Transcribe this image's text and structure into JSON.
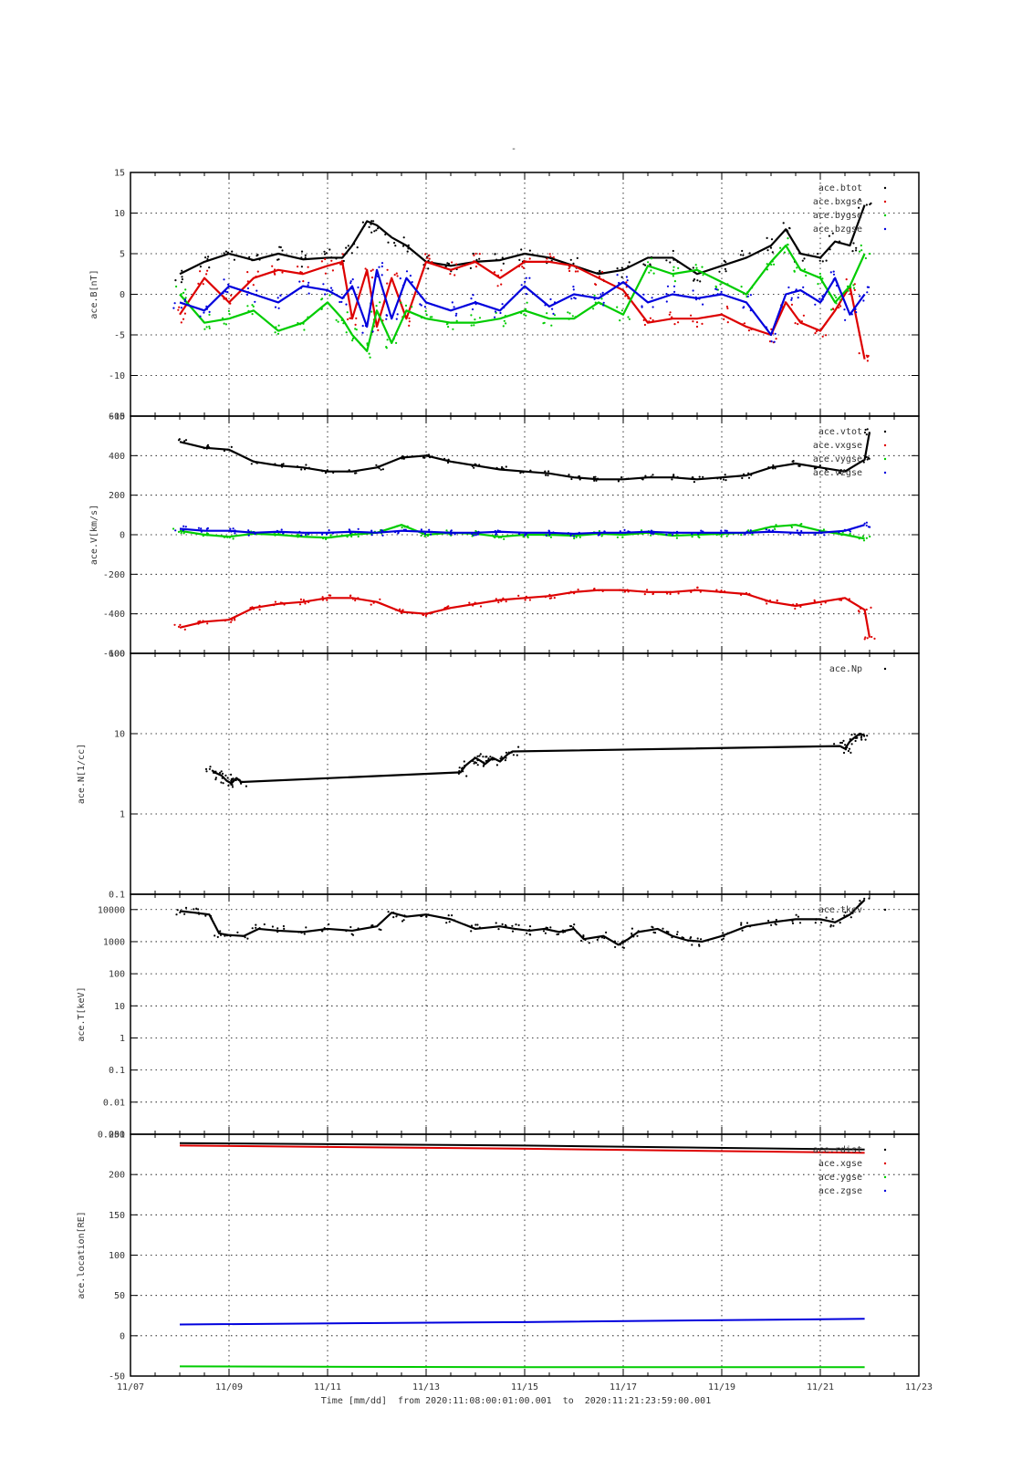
{
  "page": {
    "title": "-",
    "footer": "Time [mm/dd]  from 2020:11:08:00:01:00.001  to  2020:11:21:23:59:00.001"
  },
  "colors": {
    "black": "#000000",
    "red": "#dd0000",
    "green": "#00cc00",
    "blue": "#0000dd"
  },
  "chart_data": [
    {
      "type": "scatter",
      "ylabel": "ace.B[nT]",
      "ylim": [
        -15,
        15
      ],
      "yticks": [
        {
          "v": 15,
          "label": "15"
        },
        {
          "v": 10,
          "label": "10"
        },
        {
          "v": 5,
          "label": "5"
        },
        {
          "v": 0,
          "label": "0"
        },
        {
          "v": -5,
          "label": "-5"
        },
        {
          "v": -10,
          "label": "-10"
        },
        {
          "v": -15,
          "label": "-15"
        }
      ],
      "legend": "top-right",
      "series": [
        {
          "name": "ace.btot",
          "color": "#000000",
          "x": [
            8.0,
            8.5,
            9.0,
            9.5,
            10.0,
            10.5,
            11.0,
            11.3,
            11.5,
            11.8,
            12.0,
            12.3,
            12.6,
            13.0,
            13.5,
            14.0,
            14.5,
            15.0,
            15.5,
            16.0,
            16.5,
            17.0,
            17.5,
            18.0,
            18.5,
            19.0,
            19.5,
            20.0,
            20.3,
            20.6,
            21.0,
            21.3,
            21.6,
            21.9
          ],
          "y": [
            2.5,
            4.0,
            5.0,
            4.2,
            5.0,
            4.3,
            4.5,
            4.5,
            6.0,
            9.0,
            8.5,
            7.0,
            6.0,
            4.0,
            3.5,
            4.0,
            4.2,
            5.0,
            4.5,
            3.5,
            2.5,
            3.0,
            4.5,
            4.5,
            2.5,
            3.5,
            4.5,
            6.0,
            8.0,
            5.0,
            4.5,
            6.5,
            6.0,
            11.0
          ]
        },
        {
          "name": "ace.bxgse",
          "color": "#dd0000",
          "x": [
            8.0,
            8.5,
            9.0,
            9.5,
            10.0,
            10.5,
            11.0,
            11.3,
            11.5,
            11.8,
            12.0,
            12.3,
            12.6,
            13.0,
            13.5,
            14.0,
            14.5,
            15.0,
            15.5,
            16.0,
            16.5,
            17.0,
            17.5,
            18.0,
            18.5,
            19.0,
            19.5,
            20.0,
            20.3,
            20.6,
            21.0,
            21.3,
            21.6,
            21.9
          ],
          "y": [
            -2.5,
            2.0,
            -1.0,
            2.0,
            3.0,
            2.5,
            3.5,
            4.0,
            -3.0,
            3.0,
            -4.0,
            2.0,
            -3.0,
            4.0,
            3.0,
            4.0,
            2.0,
            4.0,
            4.0,
            3.5,
            2.0,
            0.5,
            -3.5,
            -3.0,
            -3.0,
            -2.5,
            -4.0,
            -5.0,
            -1.0,
            -3.5,
            -4.5,
            -2.0,
            1.0,
            -8.0
          ]
        },
        {
          "name": "ace.bygse",
          "color": "#00cc00",
          "x": [
            8.0,
            8.5,
            9.0,
            9.5,
            10.0,
            10.5,
            11.0,
            11.3,
            11.5,
            11.8,
            12.0,
            12.3,
            12.6,
            13.0,
            13.5,
            14.0,
            14.5,
            15.0,
            15.5,
            16.0,
            16.5,
            17.0,
            17.5,
            18.0,
            18.5,
            19.0,
            19.5,
            20.0,
            20.3,
            20.6,
            21.0,
            21.3,
            21.6,
            21.9
          ],
          "y": [
            0.0,
            -3.5,
            -3.0,
            -2.0,
            -4.5,
            -3.5,
            -1.0,
            -3.0,
            -5.0,
            -7.0,
            -2.0,
            -6.0,
            -2.0,
            -3.0,
            -3.5,
            -3.5,
            -3.0,
            -2.0,
            -3.0,
            -3.0,
            -1.0,
            -2.5,
            3.5,
            2.5,
            3.0,
            1.5,
            0.0,
            4.0,
            6.0,
            3.0,
            2.0,
            -1.0,
            1.0,
            5.0
          ]
        },
        {
          "name": "ace.bzgse",
          "color": "#0000dd",
          "x": [
            8.0,
            8.5,
            9.0,
            9.5,
            10.0,
            10.5,
            11.0,
            11.3,
            11.5,
            11.8,
            12.0,
            12.3,
            12.6,
            13.0,
            13.5,
            14.0,
            14.5,
            15.0,
            15.5,
            16.0,
            16.5,
            17.0,
            17.5,
            18.0,
            18.5,
            19.0,
            19.5,
            20.0,
            20.3,
            20.6,
            21.0,
            21.3,
            21.6,
            21.9
          ],
          "y": [
            -1.0,
            -2.0,
            1.0,
            0.0,
            -1.0,
            1.0,
            0.5,
            -0.5,
            1.0,
            -4.0,
            3.0,
            -3.0,
            2.0,
            -1.0,
            -2.0,
            -1.0,
            -2.0,
            1.0,
            -1.5,
            0.0,
            -0.5,
            1.5,
            -1.0,
            0.0,
            -0.5,
            0.0,
            -1.0,
            -5.0,
            0.0,
            0.5,
            -1.0,
            2.0,
            -2.5,
            0.0
          ]
        }
      ]
    },
    {
      "type": "scatter",
      "ylabel": "ace.V[km/s]",
      "ylim": [
        -600,
        600
      ],
      "yticks": [
        {
          "v": 600,
          "label": "600"
        },
        {
          "v": 400,
          "label": "400"
        },
        {
          "v": 200,
          "label": "200"
        },
        {
          "v": 0,
          "label": "0"
        },
        {
          "v": -200,
          "label": "-200"
        },
        {
          "v": -400,
          "label": "-400"
        },
        {
          "v": -600,
          "label": "-600"
        }
      ],
      "legend": "top-right",
      "series": [
        {
          "name": "ace.vtot",
          "color": "#000000",
          "x": [
            8.0,
            8.5,
            9.0,
            9.5,
            10.0,
            10.5,
            11.0,
            11.5,
            12.0,
            12.5,
            13.0,
            13.5,
            14.0,
            14.5,
            15.0,
            15.5,
            16.0,
            16.5,
            17.0,
            17.5,
            18.0,
            18.5,
            19.0,
            19.5,
            20.0,
            20.5,
            21.0,
            21.5,
            21.9,
            22.0
          ],
          "y": [
            470,
            440,
            430,
            370,
            350,
            340,
            320,
            320,
            340,
            390,
            400,
            370,
            350,
            330,
            320,
            310,
            290,
            280,
            280,
            290,
            290,
            280,
            290,
            300,
            340,
            360,
            340,
            320,
            380,
            520
          ]
        },
        {
          "name": "ace.vxgse",
          "color": "#dd0000",
          "x": [
            8.0,
            8.5,
            9.0,
            9.5,
            10.0,
            10.5,
            11.0,
            11.5,
            12.0,
            12.5,
            13.0,
            13.5,
            14.0,
            14.5,
            15.0,
            15.5,
            16.0,
            16.5,
            17.0,
            17.5,
            18.0,
            18.5,
            19.0,
            19.5,
            20.0,
            20.5,
            21.0,
            21.5,
            21.9,
            22.0
          ],
          "y": [
            -470,
            -440,
            -430,
            -370,
            -350,
            -340,
            -320,
            -320,
            -340,
            -390,
            -400,
            -370,
            -350,
            -330,
            -320,
            -310,
            -290,
            -280,
            -280,
            -290,
            -290,
            -280,
            -290,
            -300,
            -340,
            -360,
            -340,
            -320,
            -380,
            -520
          ]
        },
        {
          "name": "ace.vygse",
          "color": "#00cc00",
          "x": [
            8.0,
            8.5,
            9.0,
            9.5,
            10.0,
            10.5,
            11.0,
            11.5,
            12.0,
            12.5,
            13.0,
            13.5,
            14.0,
            14.5,
            15.0,
            15.5,
            16.0,
            16.5,
            17.0,
            17.5,
            18.0,
            18.5,
            19.0,
            19.5,
            20.0,
            20.5,
            21.0,
            21.5,
            21.9
          ],
          "y": [
            20,
            0,
            -10,
            5,
            0,
            -10,
            -15,
            0,
            10,
            50,
            0,
            10,
            5,
            -10,
            0,
            0,
            -5,
            5,
            0,
            10,
            -5,
            0,
            5,
            10,
            40,
            50,
            20,
            0,
            -20
          ]
        },
        {
          "name": "ace.vzgse",
          "color": "#0000dd",
          "x": [
            8.0,
            8.5,
            9.0,
            9.5,
            10.0,
            10.5,
            11.0,
            11.5,
            12.0,
            12.5,
            13.0,
            13.5,
            14.0,
            14.5,
            15.0,
            15.5,
            16.0,
            16.5,
            17.0,
            17.5,
            18.0,
            18.5,
            19.0,
            19.5,
            20.0,
            20.5,
            21.0,
            21.5,
            21.9
          ],
          "y": [
            30,
            20,
            20,
            10,
            15,
            10,
            10,
            15,
            10,
            20,
            15,
            10,
            10,
            15,
            10,
            10,
            5,
            10,
            10,
            15,
            10,
            10,
            10,
            10,
            15,
            10,
            10,
            20,
            50
          ]
        }
      ]
    },
    {
      "type": "scatter",
      "ylabel": "ace.N[1/cc]",
      "yscale": "log",
      "ylim": [
        0.1,
        100
      ],
      "yticks": [
        {
          "v": 100,
          "label": "100"
        },
        {
          "v": 10,
          "label": "10"
        },
        {
          "v": 1,
          "label": "1"
        },
        {
          "v": 0.1,
          "label": "0.1"
        }
      ],
      "legend": "top-right",
      "series": [
        {
          "name": "ace.Np",
          "color": "#000000",
          "x": [
            8.65,
            8.75,
            8.85,
            8.95,
            9.05,
            9.15,
            9.25,
            13.7,
            13.8,
            13.9,
            14.0,
            14.1,
            14.2,
            14.35,
            14.5,
            14.65,
            14.75,
            21.4,
            21.5,
            21.6,
            21.7,
            21.8,
            21.9
          ],
          "y": [
            3.5,
            3.2,
            3.0,
            2.6,
            2.4,
            2.8,
            2.5,
            3.3,
            4.0,
            4.5,
            5.0,
            4.6,
            4.2,
            5.0,
            4.5,
            5.5,
            6.0,
            7.0,
            6.5,
            8.0,
            9.0,
            10.0,
            9.5
          ]
        }
      ]
    },
    {
      "type": "scatter",
      "ylabel": "ace.T[keV]",
      "yscale": "log",
      "ylim": [
        0.001,
        30000
      ],
      "yticks": [
        {
          "v": 10000,
          "label": "10000"
        },
        {
          "v": 1000,
          "label": "1000"
        },
        {
          "v": 100,
          "label": "100"
        },
        {
          "v": 10,
          "label": "10"
        },
        {
          "v": 1,
          "label": "1"
        },
        {
          "v": 0.1,
          "label": "0.1"
        },
        {
          "v": 0.01,
          "label": "0.01"
        },
        {
          "v": 0.001,
          "label": "0.001"
        }
      ],
      "legend": "top-right",
      "series": [
        {
          "name": "ace.tkev",
          "color": "#000000",
          "x": [
            8.0,
            8.3,
            8.6,
            8.8,
            9.0,
            9.3,
            9.6,
            10.0,
            10.5,
            11.0,
            11.5,
            12.0,
            12.3,
            12.6,
            13.0,
            13.5,
            14.0,
            14.5,
            14.8,
            15.1,
            15.4,
            15.7,
            16.0,
            16.2,
            16.6,
            16.9,
            17.1,
            17.3,
            17.7,
            18.0,
            18.3,
            18.6,
            19.0,
            19.5,
            20.0,
            20.5,
            21.0,
            21.3,
            21.6,
            21.9
          ],
          "y": [
            9000,
            8000,
            7000,
            1800,
            1600,
            1500,
            2500,
            2200,
            2000,
            2500,
            2200,
            3000,
            8000,
            6000,
            7000,
            5000,
            2500,
            3000,
            2500,
            2200,
            2500,
            2000,
            2500,
            1200,
            1500,
            800,
            1200,
            2000,
            2500,
            1500,
            1100,
            1000,
            1500,
            3000,
            4000,
            5000,
            5000,
            4000,
            7000,
            20000
          ]
        }
      ]
    },
    {
      "type": "scatter",
      "ylabel": "ace.location[RE]",
      "ylim": [
        -50,
        250
      ],
      "yticks": [
        {
          "v": 250,
          "label": "250"
        },
        {
          "v": 200,
          "label": "200"
        },
        {
          "v": 150,
          "label": "150"
        },
        {
          "v": 100,
          "label": "100"
        },
        {
          "v": 50,
          "label": "50"
        },
        {
          "v": 0,
          "label": "0"
        },
        {
          "v": -50,
          "label": "-50"
        }
      ],
      "legend": "top-right",
      "series": [
        {
          "name": "ace.rdist",
          "color": "#000000",
          "x": [
            8.0,
            15.0,
            21.9
          ],
          "y": [
            239,
            236,
            231
          ]
        },
        {
          "name": "ace.xgse",
          "color": "#dd0000",
          "x": [
            8.0,
            15.0,
            21.9
          ],
          "y": [
            236,
            232,
            227
          ]
        },
        {
          "name": "ace.ygse",
          "color": "#00cc00",
          "x": [
            8.0,
            15.0,
            21.9
          ],
          "y": [
            -38,
            -39,
            -39
          ]
        },
        {
          "name": "ace.zgse",
          "color": "#0000dd",
          "x": [
            8.0,
            15.0,
            21.9
          ],
          "y": [
            14,
            17,
            21
          ]
        }
      ]
    }
  ],
  "x_axis": {
    "xlim": [
      7,
      23
    ],
    "ticks": [
      {
        "v": 7,
        "label": "11/07"
      },
      {
        "v": 9,
        "label": "11/09"
      },
      {
        "v": 11,
        "label": "11/11"
      },
      {
        "v": 13,
        "label": "11/13"
      },
      {
        "v": 15,
        "label": "11/15"
      },
      {
        "v": 17,
        "label": "11/17"
      },
      {
        "v": 19,
        "label": "11/19"
      },
      {
        "v": 21,
        "label": "11/21"
      },
      {
        "v": 23,
        "label": "11/23"
      }
    ]
  }
}
